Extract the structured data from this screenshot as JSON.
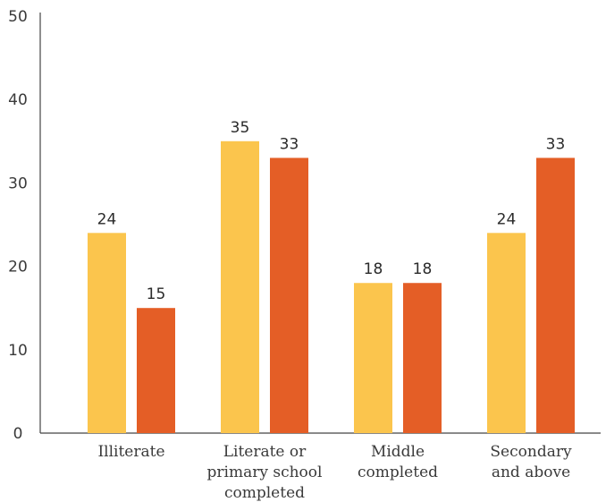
{
  "chart_data": {
    "type": "bar",
    "categories": [
      [
        "Illiterate"
      ],
      [
        "Literate or",
        "primary school",
        "completed"
      ],
      [
        "Middle",
        "completed"
      ],
      [
        "Secondary",
        "and above"
      ]
    ],
    "series": [
      {
        "values": [
          24,
          35,
          18,
          24
        ],
        "color": "#FBC54D"
      },
      {
        "values": [
          15,
          33,
          18,
          33
        ],
        "color": "#E45E26"
      }
    ],
    "ylim": [
      0,
      50
    ],
    "yticks": [
      0,
      10,
      20,
      30,
      40,
      50
    ],
    "xlabel": "",
    "ylabel": "",
    "title": "",
    "grid": false,
    "data_labels": true
  }
}
